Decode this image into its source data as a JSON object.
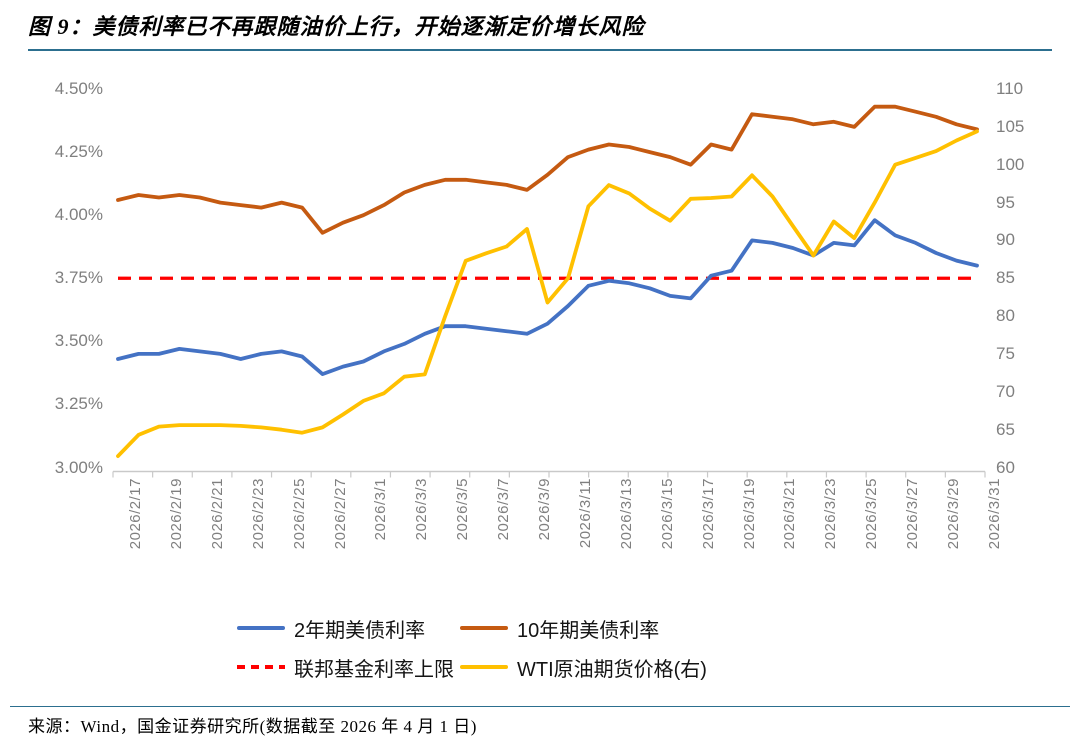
{
  "page": {
    "title": "图 9：美债利率已不再跟随油价上行，开始逐渐定价增长风险",
    "source": "来源：Wind，国金证券研究所(数据截至 2026 年 4 月 1 日)",
    "rule_color": "#2C6F8F"
  },
  "chart_data": {
    "type": "line",
    "grid": false,
    "legend_position": "bottom",
    "x_tick_labels": [
      "2026/2/17",
      "2026/2/19",
      "2026/2/21",
      "2026/2/23",
      "2026/2/25",
      "2026/2/27",
      "2026/3/1",
      "2026/3/3",
      "2026/3/5",
      "2026/3/7",
      "2026/3/9",
      "2026/3/11",
      "2026/3/13",
      "2026/3/15",
      "2026/3/17",
      "2026/3/19",
      "2026/3/21",
      "2026/3/23",
      "2026/3/25",
      "2026/3/27",
      "2026/3/29",
      "2026/3/31"
    ],
    "points_per_tick": 2,
    "left_axis": {
      "min": 3.0,
      "max": 4.5,
      "tick_labels": [
        "4.50%",
        "4.25%",
        "4.00%",
        "3.75%",
        "3.50%",
        "3.25%",
        "3.00%"
      ]
    },
    "right_axis": {
      "min": 60,
      "max": 110,
      "tick_labels": [
        "110",
        "105",
        "100",
        "95",
        "90",
        "85",
        "80",
        "75",
        "70",
        "65",
        "60"
      ]
    },
    "series": [
      {
        "name": "2年期美债利率",
        "axis": "left",
        "color": "#4472C4",
        "style": "solid",
        "values": [
          3.43,
          3.45,
          3.45,
          3.47,
          3.46,
          3.45,
          3.43,
          3.45,
          3.46,
          3.44,
          3.37,
          3.4,
          3.42,
          3.46,
          3.49,
          3.53,
          3.56,
          3.56,
          3.55,
          3.54,
          3.53,
          3.57,
          3.64,
          3.72,
          3.74,
          3.73,
          3.71,
          3.68,
          3.67,
          3.76,
          3.78,
          3.9,
          3.89,
          3.87,
          3.84,
          3.89,
          3.88,
          3.98,
          3.92,
          3.89,
          3.85,
          3.82,
          3.8
        ]
      },
      {
        "name": "10年期美债利率",
        "axis": "left",
        "color": "#C55A11",
        "style": "solid",
        "values": [
          4.06,
          4.08,
          4.07,
          4.08,
          4.07,
          4.05,
          4.04,
          4.03,
          4.05,
          4.03,
          3.93,
          3.97,
          4.0,
          4.04,
          4.09,
          4.12,
          4.14,
          4.14,
          4.13,
          4.12,
          4.1,
          4.16,
          4.23,
          4.26,
          4.28,
          4.27,
          4.25,
          4.23,
          4.2,
          4.28,
          4.26,
          4.4,
          4.39,
          4.38,
          4.36,
          4.37,
          4.35,
          4.43,
          4.43,
          4.41,
          4.39,
          4.36,
          4.34
        ]
      },
      {
        "name": "联邦基金利率上限",
        "axis": "left",
        "color": "#FF0000",
        "style": "dashed",
        "constant": 3.75
      },
      {
        "name": "WTI原油期货价格(右)",
        "axis": "right",
        "color": "#FFC000",
        "style": "solid",
        "values": [
          61.5,
          64.3,
          65.4,
          65.6,
          65.6,
          65.6,
          65.5,
          65.3,
          65.0,
          64.6,
          65.3,
          67.0,
          68.8,
          69.8,
          72.0,
          72.3,
          80.0,
          87.3,
          88.3,
          89.2,
          91.5,
          81.8,
          85.0,
          94.5,
          97.3,
          96.2,
          94.2,
          92.6,
          95.5,
          95.6,
          95.8,
          98.6,
          95.8,
          91.9,
          88.0,
          92.5,
          90.3,
          95.0,
          100.0,
          100.9,
          101.8,
          103.2,
          104.4
        ]
      }
    ]
  }
}
